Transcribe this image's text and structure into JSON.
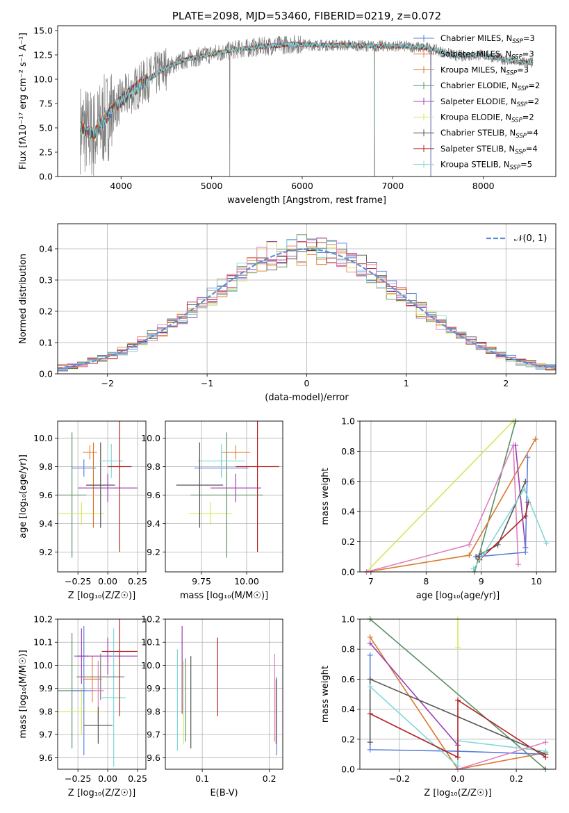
{
  "colors": {
    "chabrier_miles": "#5b7fdb",
    "salpeter_miles": "#e8813f",
    "kroupa_miles": "#d9792d",
    "chabrier_elodie": "#5a8f64",
    "salpeter_elodie": "#9b3fb5",
    "kroupa_elodie": "#d8e45a",
    "chabrier_stelib": "#555555",
    "salpeter_stelib": "#b22222",
    "kroupa_stelib": "#7fd8d8",
    "pink": "#e07fbf",
    "gray": "#808080",
    "normal": "#5b8fd6"
  },
  "chart_data": [
    {
      "type": "line",
      "title": "PLATE=2098, MJD=53460, FIBERID=0219, z=0.072",
      "xlabel": "wavelength [Angstrom, rest frame]",
      "ylabel": "Flux [fλ10⁻¹⁷ erg cm⁻² s⁻¹ A⁻¹]",
      "xlim": [
        3300,
        8800
      ],
      "ylim": [
        0,
        15.5
      ],
      "xticks": [
        "4000",
        "5000",
        "6000",
        "7000",
        "8000"
      ],
      "yticks": [
        "0.0",
        "2.5",
        "5.0",
        "7.5",
        "10.0",
        "12.5",
        "15.0"
      ],
      "legend_location": "right",
      "legend": [
        {
          "label": "Chabrier MILES, N",
          "sub": "SSP",
          "n": "=3",
          "color": "chabrier_miles"
        },
        {
          "label": "Salpeter MILES, N",
          "sub": "SSP",
          "n": "=3",
          "color": "salpeter_miles"
        },
        {
          "label": "Kroupa MILES, N",
          "sub": "SSP",
          "n": "=3",
          "color": "kroupa_miles"
        },
        {
          "label": "Chabrier ELODIE, N",
          "sub": "SSP",
          "n": "=2",
          "color": "chabrier_elodie"
        },
        {
          "label": "Salpeter ELODIE, N",
          "sub": "SSP",
          "n": "=2",
          "color": "salpeter_elodie"
        },
        {
          "label": "Kroupa ELODIE, N",
          "sub": "SSP",
          "n": "=2",
          "color": "kroupa_elodie"
        },
        {
          "label": "Chabrier STELIB, N",
          "sub": "SSP",
          "n": "=4",
          "color": "chabrier_stelib"
        },
        {
          "label": "Salpeter STELIB, N",
          "sub": "SSP",
          "n": "=4",
          "color": "salpeter_stelib"
        },
        {
          "label": "Kroupa STELIB, N",
          "sub": "SSP",
          "n": "=5",
          "color": "kroupa_stelib"
        }
      ],
      "continuum": {
        "x": [
          3550,
          3700,
          3800,
          3900,
          4000,
          4100,
          4300,
          4500,
          4700,
          5000,
          5300,
          5600,
          5900,
          6200,
          6500,
          6800,
          7100,
          7400,
          7700,
          8000,
          8300,
          8500
        ],
        "y": [
          5.0,
          4.3,
          5.6,
          6.8,
          7.8,
          8.6,
          10.0,
          11.2,
          12.0,
          12.6,
          13.1,
          13.4,
          13.6,
          13.5,
          13.5,
          13.4,
          13.4,
          13.2,
          12.4,
          12.5,
          11.9,
          11.7
        ]
      }
    },
    {
      "type": "histogram",
      "xlabel": "(data-model)/error",
      "ylabel": "Normed distribution",
      "xlim": [
        -2.5,
        2.5
      ],
      "ylim": [
        0,
        0.48
      ],
      "xticks": [
        "−2",
        "−1",
        "0",
        "1",
        "2"
      ],
      "yticks": [
        "0.0",
        "0.1",
        "0.2",
        "0.3",
        "0.4"
      ],
      "bin_width": 0.1,
      "legend_label": "𝒩(0, 1)",
      "normal": {
        "mu": 0,
        "sigma": 1
      }
    },
    {
      "type": "scatter",
      "name": "age-vs-Z",
      "xlabel": "Z [log₁₀(Z/Z☉)]",
      "ylabel": "age  [log₁₀(age/yr)]",
      "xlim": [
        -0.42,
        0.32
      ],
      "ylim": [
        9.06,
        10.12
      ],
      "xticks": [
        "−0.25",
        "0.00",
        "0.25"
      ],
      "yticks": [
        "9.2",
        "9.4",
        "9.6",
        "9.8",
        "10.0"
      ],
      "points": [
        {
          "x": -0.3,
          "y": 9.6,
          "xerr": 0.12,
          "yerr": 0.44,
          "color": "chabrier_elodie"
        },
        {
          "x": -0.22,
          "y": 9.47,
          "xerr": 0.19,
          "yerr": 0.08,
          "color": "kroupa_elodie"
        },
        {
          "x": -0.2,
          "y": 9.79,
          "xerr": 0.1,
          "yerr": 0.06,
          "color": "chabrier_miles"
        },
        {
          "x": -0.15,
          "y": 9.9,
          "xerr": 0.06,
          "yerr": 0.05,
          "color": "salpeter_miles"
        },
        {
          "x": -0.12,
          "y": 9.67,
          "xerr": 0.06,
          "yerr": 0.3,
          "color": "kroupa_miles"
        },
        {
          "x": -0.06,
          "y": 9.67,
          "xerr": 0.12,
          "yerr": 0.3,
          "color": "chabrier_stelib"
        },
        {
          "x": 0.0,
          "y": 9.65,
          "xerr": 0.25,
          "yerr": 0.1,
          "color": "salpeter_elodie"
        },
        {
          "x": 0.03,
          "y": 9.84,
          "xerr": 0.1,
          "yerr": 0.12,
          "color": "kroupa_stelib"
        },
        {
          "x": 0.1,
          "y": 9.8,
          "xerr": 0.1,
          "yerr": 0.6,
          "color": "salpeter_stelib"
        }
      ]
    },
    {
      "type": "scatter",
      "name": "age-vs-mass",
      "xlabel": "mass [log₁₀(M/M☉)]",
      "ylabel": "",
      "xlim": [
        9.55,
        10.2
      ],
      "ylim": [
        9.06,
        10.12
      ],
      "xticks": [
        "9.75",
        "10.00"
      ],
      "yticks": [
        "9.2",
        "9.4",
        "9.6",
        "9.8",
        "10.0"
      ],
      "points": [
        {
          "x": 9.8,
          "y": 9.47,
          "xerr": 0.12,
          "yerr": 0.08,
          "color": "kroupa_elodie"
        },
        {
          "x": 9.89,
          "y": 9.6,
          "xerr": 0.2,
          "yerr": 0.44,
          "color": "chabrier_elodie"
        },
        {
          "x": 9.86,
          "y": 9.79,
          "xerr": 0.15,
          "yerr": 0.06,
          "color": "chabrier_miles"
        },
        {
          "x": 9.94,
          "y": 9.9,
          "xerr": 0.08,
          "yerr": 0.05,
          "color": "salpeter_miles"
        },
        {
          "x": 9.94,
          "y": 9.65,
          "xerr": 0.14,
          "yerr": 0.1,
          "color": "salpeter_elodie"
        },
        {
          "x": 9.86,
          "y": 9.84,
          "xerr": 0.13,
          "yerr": 0.12,
          "color": "kroupa_stelib"
        },
        {
          "x": 9.74,
          "y": 9.67,
          "xerr": 0.13,
          "yerr": 0.3,
          "color": "chabrier_stelib"
        },
        {
          "x": 10.06,
          "y": 9.8,
          "xerr": 0.12,
          "yerr": 0.6,
          "color": "salpeter_stelib"
        }
      ]
    },
    {
      "type": "line",
      "name": "weight-vs-age",
      "xlabel": "age  [log₁₀(age/yr)]",
      "ylabel": "mass weight",
      "xlim": [
        6.8,
        10.35
      ],
      "ylim": [
        0,
        1
      ],
      "xticks": [
        "7",
        "8",
        "9",
        "10"
      ],
      "yticks": [
        "0.0",
        "0.2",
        "0.4",
        "0.6",
        "0.8",
        "1.0"
      ],
      "series": [
        {
          "color": "kroupa_elodie",
          "x": [
            6.92,
            9.58
          ],
          "y": [
            0.0,
            1.0
          ]
        },
        {
          "color": "chabrier_elodie",
          "x": [
            8.88,
            9.62
          ],
          "y": [
            0.0,
            1.0
          ]
        },
        {
          "color": "kroupa_miles",
          "x": [
            6.92,
            8.78,
            9.98
          ],
          "y": [
            0.0,
            0.11,
            0.88
          ]
        },
        {
          "color": "pink",
          "x": [
            6.92,
            8.78,
            9.58,
            9.67
          ],
          "y": [
            0.0,
            0.18,
            0.84,
            0.05
          ]
        },
        {
          "color": "salpeter_elodie",
          "x": [
            9.62,
            9.8
          ],
          "y": [
            0.84,
            0.16
          ]
        },
        {
          "color": "chabrier_miles",
          "x": [
            8.9,
            9.8,
            9.84
          ],
          "y": [
            0.1,
            0.13,
            0.76
          ]
        },
        {
          "color": "chabrier_stelib",
          "x": [
            8.92,
            9.0,
            9.3,
            9.8
          ],
          "y": [
            0.1,
            0.12,
            0.18,
            0.6
          ]
        },
        {
          "color": "salpeter_stelib",
          "x": [
            8.97,
            9.8,
            9.85
          ],
          "y": [
            0.08,
            0.37,
            0.46
          ]
        },
        {
          "color": "kroupa_stelib",
          "x": [
            8.86,
            9.05,
            9.78,
            10.18
          ],
          "y": [
            0.02,
            0.12,
            0.55,
            0.19
          ]
        }
      ]
    },
    {
      "type": "scatter",
      "name": "mass-vs-Z",
      "xlabel": "Z [log₁₀(Z/Z☉)]",
      "ylabel": "mass [log₁₀(M/M☉)]",
      "xlim": [
        -0.42,
        0.32
      ],
      "ylim": [
        9.55,
        10.2
      ],
      "xticks": [
        "−0.25",
        "0.00",
        "0.25"
      ],
      "yticks": [
        "9.6",
        "9.7",
        "9.8",
        "9.9",
        "10.0",
        "10.1",
        "10.2"
      ],
      "points": [
        {
          "x": -0.3,
          "y": 9.89,
          "xerr": 0.12,
          "yerr": 0.25,
          "color": "chabrier_elodie"
        },
        {
          "x": -0.22,
          "y": 9.8,
          "xerr": 0.19,
          "yerr": 0.1,
          "color": "kroupa_elodie"
        },
        {
          "x": -0.2,
          "y": 9.89,
          "xerr": 0.1,
          "yerr": 0.28,
          "color": "chabrier_miles"
        },
        {
          "x": -0.22,
          "y": 10.04,
          "xerr": 0.06,
          "yerr": 0.12,
          "color": "salpeter_elodie"
        },
        {
          "x": -0.13,
          "y": 9.94,
          "xerr": 0.08,
          "yerr": 0.1,
          "color": "salpeter_miles"
        },
        {
          "x": -0.08,
          "y": 9.89,
          "xerr": 0.05,
          "yerr": 0.13,
          "color": "pink"
        },
        {
          "x": -0.08,
          "y": 9.74,
          "xerr": 0.12,
          "yerr": 0.08,
          "color": "chabrier_stelib"
        },
        {
          "x": 0.0,
          "y": 10.04,
          "xerr": 0.25,
          "yerr": 0.08,
          "color": "salpeter_elodie"
        },
        {
          "x": 0.05,
          "y": 9.86,
          "xerr": 0.1,
          "yerr": 0.3,
          "color": "kroupa_stelib"
        },
        {
          "x": -0.06,
          "y": 9.95,
          "xerr": 0.2,
          "yerr": 0.1,
          "color": "gray"
        },
        {
          "x": 0.1,
          "y": 10.06,
          "xerr": 0.15,
          "yerr": 0.28,
          "color": "salpeter_stelib"
        }
      ]
    },
    {
      "type": "scatter",
      "name": "mass-vs-EBV",
      "xlabel": "E(B-V)",
      "ylabel": "",
      "xlim": [
        0.045,
        0.22
      ],
      "ylim": [
        9.55,
        10.2
      ],
      "xticks": [
        "0.1",
        "0.2"
      ],
      "yticks": [
        "9.6",
        "9.7",
        "9.8",
        "9.9",
        "10.0",
        "10.1",
        "10.2"
      ],
      "points": [
        {
          "x": 0.063,
          "y": 9.85,
          "yerr": 0.22,
          "color": "kroupa_stelib"
        },
        {
          "x": 0.07,
          "y": 9.98,
          "yerr": 0.19,
          "color": "salpeter_elodie"
        },
        {
          "x": 0.072,
          "y": 9.84,
          "yerr": 0.18,
          "color": "kroupa_elodie"
        },
        {
          "x": 0.075,
          "y": 9.85,
          "yerr": 0.18,
          "color": "chabrier_elodie"
        },
        {
          "x": 0.083,
          "y": 9.84,
          "yerr": 0.2,
          "color": "chabrier_stelib"
        },
        {
          "x": 0.123,
          "y": 9.95,
          "yerr": 0.17,
          "color": "salpeter_stelib"
        },
        {
          "x": 0.208,
          "y": 9.86,
          "yerr": 0.19,
          "color": "pink"
        },
        {
          "x": 0.21,
          "y": 9.8,
          "yerr": 0.14,
          "color": "kroupa_miles"
        },
        {
          "x": 0.211,
          "y": 9.78,
          "yerr": 0.17,
          "color": "chabrier_miles"
        }
      ]
    },
    {
      "type": "line",
      "name": "weight-vs-Z",
      "xlabel": "Z [log₁₀(Z/Z☉)]",
      "ylabel": "mass weight",
      "xlim": [
        -0.335,
        0.335
      ],
      "ylim": [
        0,
        1
      ],
      "xticks": [
        "−0.2",
        "0.0",
        "0.2"
      ],
      "yticks": [
        "0.0",
        "0.2",
        "0.4",
        "0.6",
        "0.8",
        "1.0"
      ],
      "series": [
        {
          "color": "chabrier_elodie",
          "x": [
            -0.3,
            0.3
          ],
          "y": [
            1.0,
            0.0
          ]
        },
        {
          "color": "kroupa_elodie",
          "x": [
            0.0,
            0.0
          ],
          "y": [
            0.81,
            1.0
          ]
        },
        {
          "color": "kroupa_miles",
          "x": [
            -0.3,
            0.0,
            0.3
          ],
          "y": [
            0.88,
            0.0,
            0.11
          ]
        },
        {
          "color": "salpeter_elodie",
          "x": [
            -0.3,
            0.0
          ],
          "y": [
            0.84,
            0.16
          ]
        },
        {
          "color": "chabrier_miles",
          "x": [
            -0.3,
            -0.3,
            0.0,
            0.3
          ],
          "y": [
            0.76,
            0.13,
            0.12,
            0.1
          ]
        },
        {
          "color": "chabrier_stelib",
          "x": [
            -0.3,
            -0.3,
            0.3
          ],
          "y": [
            0.18,
            0.6,
            0.1
          ]
        },
        {
          "color": "kroupa_stelib",
          "x": [
            -0.3,
            0.0,
            0.0,
            0.3
          ],
          "y": [
            0.55,
            0.02,
            0.19,
            0.12
          ]
        },
        {
          "color": "salpeter_stelib",
          "x": [
            -0.3,
            0.0,
            0.0,
            0.3
          ],
          "y": [
            0.37,
            0.08,
            0.46,
            0.08
          ]
        },
        {
          "color": "pink",
          "x": [
            0.0,
            0.3
          ],
          "y": [
            0.0,
            0.18
          ]
        }
      ]
    }
  ]
}
